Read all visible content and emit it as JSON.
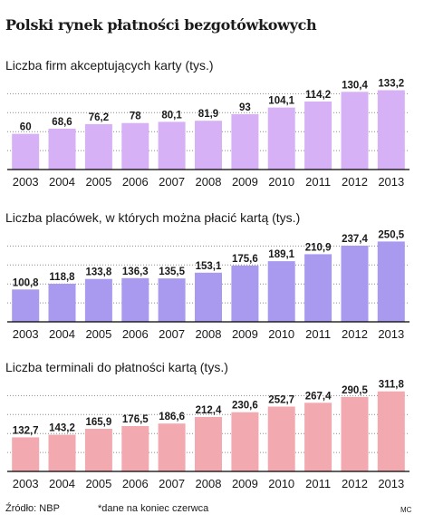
{
  "title": "Polski rynek płatności bezgotówkowych",
  "footer": {
    "source": "Źródło: NBP",
    "note": "*dane na koniec czerwca",
    "credit": "MC"
  },
  "colors": {
    "panel1": "#d7b1f5",
    "panel2": "#a99af0",
    "panel3": "#f2aab0",
    "grid": "#8a8a8a",
    "baseline": "#000000"
  },
  "chart_data": [
    {
      "type": "bar",
      "title": "Liczba firm akceptujących karty (tys.)",
      "categories": [
        "2003",
        "2004",
        "2005",
        "2006",
        "2007",
        "2008",
        "2009",
        "2010",
        "2011",
        "2012",
        "2013"
      ],
      "values": [
        60,
        68.6,
        76.2,
        78,
        80.1,
        81.9,
        93,
        104.1,
        114.2,
        130.4,
        133.2
      ],
      "labels": [
        "60",
        "68,6",
        "76,2",
        "78",
        "80,1",
        "81,9",
        "93",
        "104,1",
        "114,2",
        "130,4",
        "133,2"
      ],
      "ylim": [
        0,
        140
      ],
      "grid": true
    },
    {
      "type": "bar",
      "title": "Liczba placówek, w których można płacić kartą (tys.)",
      "categories": [
        "2003",
        "2004",
        "2005",
        "2006",
        "2007",
        "2008",
        "2009",
        "2010",
        "2011",
        "2012",
        "2013"
      ],
      "values": [
        100.8,
        118.8,
        133.8,
        136.3,
        135.5,
        153.1,
        175.6,
        189.1,
        210.9,
        237.4,
        250.5
      ],
      "labels": [
        "100,8",
        "118,8",
        "133,8",
        "136,3",
        "135,5",
        "153,1",
        "175,6",
        "189,1",
        "210,9",
        "237,4",
        "250,5"
      ],
      "ylim": [
        0,
        260
      ],
      "grid": true
    },
    {
      "type": "bar",
      "title": "Liczba terminali do płatności kartą (tys.)",
      "categories": [
        "2003",
        "2004",
        "2005",
        "2006",
        "2007",
        "2008",
        "2009",
        "2010",
        "2011",
        "2012",
        "2013"
      ],
      "values": [
        132.7,
        143.2,
        165.9,
        176.5,
        186.6,
        212.4,
        230.6,
        252.7,
        267.4,
        290.5,
        311.8
      ],
      "labels": [
        "132,7",
        "143,2",
        "165,9",
        "176,5",
        "186,6",
        "212,4",
        "230,6",
        "252,7",
        "267,4",
        "290,5",
        "311,8"
      ],
      "ylim": [
        0,
        325
      ],
      "grid": true
    }
  ]
}
